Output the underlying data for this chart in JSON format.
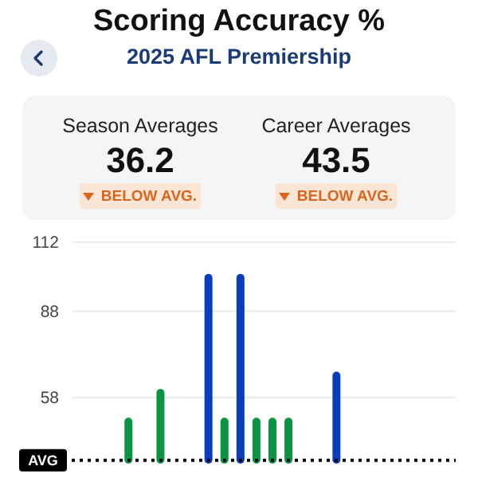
{
  "chart_data": {
    "type": "bar",
    "title": "Scoring Accuracy %",
    "subtitle": "2025 AFL Premiership",
    "annotations": [
      "Season Averages",
      "36.2",
      "BELOW AVG.",
      "Career Averages",
      "43.5",
      "BELOW AVG."
    ],
    "categories": [
      null,
      null,
      null,
      null,
      null,
      null,
      null,
      null,
      null,
      null,
      null,
      null,
      null,
      null,
      null,
      null,
      null,
      null,
      null,
      null,
      null,
      null,
      null,
      null
    ],
    "values": [
      null,
      null,
      null,
      51,
      null,
      61,
      null,
      null,
      101,
      51,
      101,
      51,
      51,
      51,
      null,
      null,
      67,
      null,
      null,
      null,
      null,
      null,
      null,
      null
    ],
    "colors": [
      null,
      null,
      null,
      "#0b9444",
      null,
      "#0b9444",
      null,
      null,
      "#0a3dbd",
      "#0b9444",
      "#0a3dbd",
      "#0b9444",
      "#0b9444",
      "#0b9444",
      null,
      null,
      "#0a3dbd",
      null,
      null,
      null,
      null,
      null,
      null,
      null
    ],
    "ylim": [
      35,
      112
    ],
    "yticks": [
      58,
      88,
      112
    ],
    "grid": "y",
    "ref_lines": [
      {
        "axis": "y",
        "value": 36.2,
        "label": "AVG",
        "color": "#000000",
        "line_style": "dotted"
      }
    ]
  }
}
